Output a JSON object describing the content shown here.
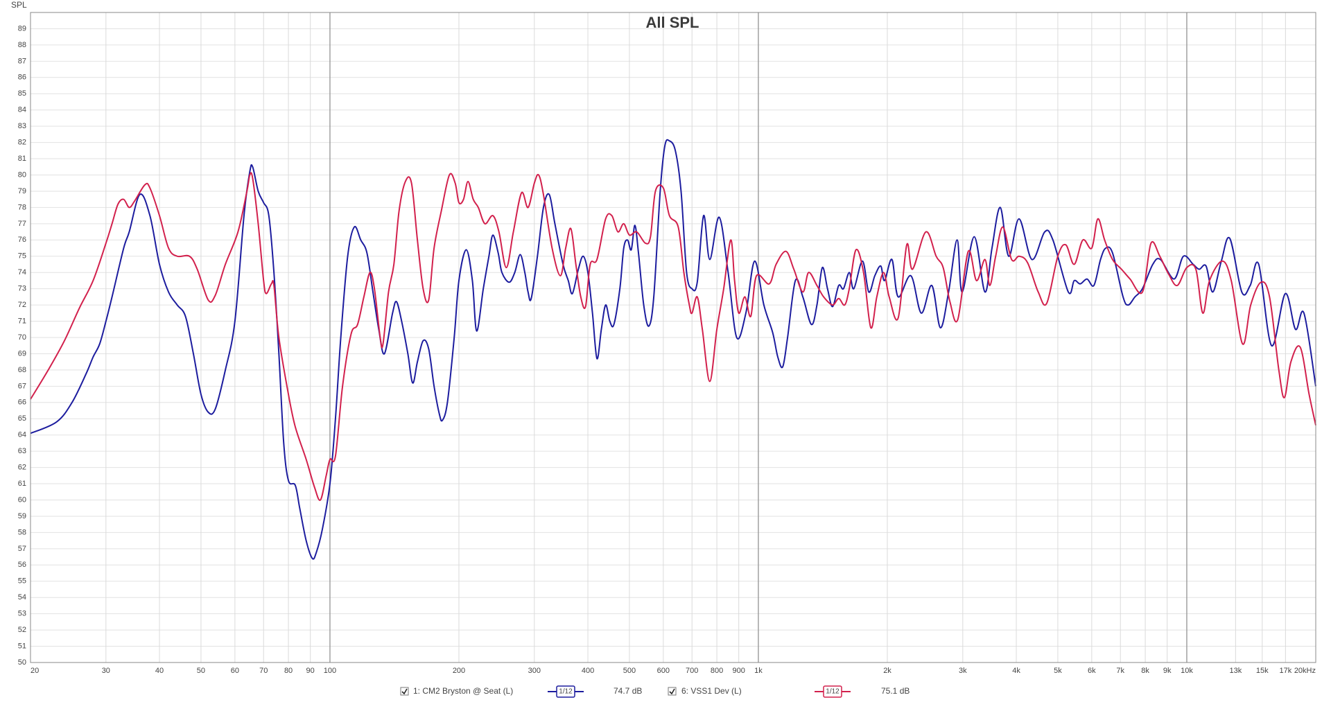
{
  "chart_data": {
    "type": "line",
    "title": "All SPL",
    "y_label": "SPL",
    "xscale": "log",
    "xlim": [
      20,
      20000
    ],
    "ylim": [
      50,
      90
    ],
    "grid": true,
    "xticks": [
      20,
      30,
      40,
      50,
      60,
      70,
      80,
      90,
      100,
      200,
      300,
      400,
      500,
      600,
      700,
      800,
      900,
      {
        "value": 1000,
        "label": "1k"
      },
      {
        "value": 2000,
        "label": "2k"
      },
      {
        "value": 3000,
        "label": "3k"
      },
      {
        "value": 4000,
        "label": "4k"
      },
      {
        "value": 5000,
        "label": "5k"
      },
      {
        "value": 6000,
        "label": "6k"
      },
      {
        "value": 7000,
        "label": "7k"
      },
      {
        "value": 8000,
        "label": "8k"
      },
      {
        "value": 9000,
        "label": "9k"
      },
      {
        "value": 10000,
        "label": "10k"
      },
      {
        "value": 13000,
        "label": "13k"
      },
      {
        "value": 15000,
        "label": "15k"
      },
      {
        "value": 17000,
        "label": "17k"
      },
      {
        "value": 20000,
        "label": "20kHz"
      }
    ],
    "yticks": [
      50,
      51,
      52,
      53,
      54,
      55,
      56,
      57,
      58,
      59,
      60,
      61,
      62,
      63,
      64,
      65,
      66,
      67,
      68,
      69,
      70,
      71,
      72,
      73,
      74,
      75,
      76,
      77,
      78,
      79,
      80,
      81,
      82,
      83,
      84,
      85,
      86,
      87,
      88,
      89
    ],
    "series": [
      {
        "name": "1: CM2 Bryston @ Seat (L)",
        "color": "#1c1c9e",
        "smoothing": "1/12",
        "level": "74.7 dB",
        "x": [
          20,
          23,
          25,
          27,
          28,
          29,
          30,
          31,
          33,
          34,
          36,
          38,
          40,
          42,
          44,
          46,
          48,
          50,
          52,
          54,
          57,
          60,
          63,
          65,
          66,
          68,
          70,
          72,
          74,
          76,
          78,
          80,
          83,
          85,
          88,
          91,
          93,
          96,
          100,
          103,
          106,
          110,
          114,
          118,
          122,
          126,
          130,
          134,
          140,
          143,
          147,
          152,
          156,
          160,
          165,
          170,
          175,
          180,
          183,
          188,
          195,
          200,
          208,
          215,
          220,
          228,
          235,
          240,
          247,
          252,
          262,
          270,
          278,
          285,
          290,
          295,
          305,
          315,
          325,
          335,
          350,
          360,
          368,
          380,
          390,
          400,
          410,
          420,
          430,
          440,
          450,
          460,
          475,
          485,
          495,
          505,
          515,
          525,
          540,
          555,
          570,
          590,
          605,
          620,
          640,
          660,
          680,
          700,
          720,
          745,
          770,
          810,
          850,
          890,
          935,
          980,
          1030,
          1080,
          1110,
          1140,
          1170,
          1220,
          1270,
          1330,
          1370,
          1410,
          1450,
          1490,
          1540,
          1580,
          1630,
          1670,
          1750,
          1810,
          1870,
          1930,
          1970,
          2050,
          2120,
          2270,
          2400,
          2540,
          2660,
          2780,
          2910,
          2990,
          3190,
          3380,
          3510,
          3670,
          3840,
          4060,
          4350,
          4660,
          4870,
          5290,
          5460,
          5640,
          5850,
          6070,
          6290,
          6470,
          6710,
          7100,
          7300,
          7570,
          7880,
          8330,
          8680,
          9340,
          9820,
          10350,
          10690,
          11090,
          11500,
          12040,
          12600,
          13440,
          14060,
          14720,
          15770,
          16980,
          17940,
          18770,
          20000
        ],
        "values": [
          64.1,
          64.8,
          66,
          67.8,
          68.8,
          69.6,
          71,
          72.5,
          75.5,
          76.5,
          78.8,
          77.5,
          74.5,
          72.8,
          72,
          71.3,
          69,
          66.5,
          65.4,
          65.6,
          68,
          71,
          77.5,
          80.2,
          80.5,
          79,
          78.3,
          77.5,
          74,
          69,
          63.5,
          61.2,
          60.9,
          59.5,
          57.5,
          56.4,
          56.8,
          58.2,
          61,
          65,
          70,
          75,
          76.8,
          76,
          75.2,
          72.8,
          70.5,
          69,
          71.5,
          72.2,
          71,
          69,
          67.2,
          68.5,
          69.8,
          69.3,
          67,
          65.3,
          64.9,
          66,
          70,
          73.5,
          75.4,
          73.5,
          70.4,
          73,
          75,
          76.3,
          75.2,
          74,
          73.4,
          74,
          75.1,
          74,
          72.8,
          72.4,
          75,
          78,
          78.8,
          77,
          74.5,
          73.5,
          72.7,
          74.2,
          75,
          74,
          71.5,
          68.7,
          70.5,
          72,
          71,
          70.8,
          73,
          75.5,
          76,
          75.4,
          76.9,
          75.2,
          72,
          70.7,
          72.5,
          79,
          81.8,
          82.1,
          81.5,
          79,
          74,
          73,
          73.4,
          77.5,
          74.8,
          77.4,
          74,
          70,
          71.5,
          74.7,
          72,
          70.3,
          68.8,
          68.2,
          70,
          73.5,
          72.5,
          70.8,
          72,
          74.3,
          73,
          71.9,
          73.2,
          73,
          74,
          73,
          74.7,
          72.8,
          73.8,
          74.4,
          73.5,
          74.8,
          72.5,
          73.8,
          71.5,
          73.2,
          70.6,
          72.8,
          76,
          72.8,
          76.2,
          72.8,
          75.5,
          78,
          75,
          77.3,
          74.8,
          76.5,
          76,
          72.8,
          73.5,
          73.3,
          73.6,
          73.2,
          74.8,
          75.5,
          75.2,
          72.5,
          72,
          72.5,
          73,
          74.5,
          74.8,
          73.6,
          75,
          74.5,
          74.2,
          74.4,
          72.8,
          74.7,
          76.1,
          72.8,
          73.2,
          74.5,
          69.5,
          72.7,
          70.5,
          71.5,
          67
        ]
      },
      {
        "name": "6: VSS1 Dev (L)",
        "color": "#d2204c",
        "smoothing": "1/12",
        "level": "75.1 dB",
        "x": [
          20,
          22,
          24,
          26,
          28,
          30,
          31,
          32,
          33,
          34,
          35,
          37,
          38,
          40,
          42,
          44,
          47,
          49,
          52,
          54,
          57,
          61,
          64,
          65,
          66,
          68,
          70,
          71,
          73,
          74,
          76,
          80,
          83,
          88,
          92,
          95,
          98,
          100,
          103,
          107,
          112,
          116,
          120,
          124,
          127,
          131,
          133,
          137,
          141,
          145,
          150,
          155,
          160,
          165,
          170,
          175,
          182,
          190,
          196,
          200,
          205,
          210,
          216,
          222,
          230,
          240,
          248,
          258,
          268,
          280,
          290,
          300,
          307,
          315,
          330,
          345,
          355,
          365,
          375,
          385,
          395,
          405,
          420,
          440,
          455,
          470,
          485,
          500,
          520,
          545,
          560,
          575,
          600,
          620,
          650,
          670,
          690,
          700,
          720,
          740,
          770,
          800,
          830,
          862,
          880,
          900,
          930,
          960,
          990,
          1060,
          1100,
          1160,
          1210,
          1270,
          1310,
          1370,
          1420,
          1490,
          1540,
          1590,
          1630,
          1690,
          1760,
          1830,
          1890,
          1960,
          2020,
          2120,
          2220,
          2290,
          2460,
          2600,
          2700,
          2800,
          2920,
          3090,
          3230,
          3380,
          3470,
          3580,
          3720,
          3900,
          4060,
          4250,
          4500,
          4710,
          5000,
          5220,
          5460,
          5720,
          6000,
          6200,
          6430,
          6710,
          7040,
          7370,
          7880,
          8250,
          8650,
          9070,
          9500,
          10000,
          10500,
          10900,
          11300,
          12100,
          12700,
          13500,
          14100,
          14900,
          15600,
          16400,
          16900,
          17500,
          18400,
          19300,
          20000
        ],
        "values": [
          66.2,
          68,
          69.8,
          71.8,
          73.5,
          75.8,
          77,
          78.2,
          78.5,
          78,
          78.4,
          79.4,
          79.2,
          77.5,
          75.5,
          75,
          75,
          74.2,
          72.3,
          72.6,
          74.5,
          76.5,
          79,
          80,
          79.8,
          77,
          73.5,
          72.7,
          73.3,
          73.2,
          70,
          66.5,
          64.5,
          62.5,
          60.8,
          60,
          61.5,
          62.5,
          62.7,
          67,
          70.2,
          70.8,
          72.5,
          74,
          73,
          70,
          69.6,
          72.8,
          74.5,
          77.8,
          79.6,
          79.5,
          76,
          73,
          72.3,
          75.5,
          77.8,
          80,
          79.5,
          78.3,
          78.5,
          79.6,
          78.5,
          78,
          77,
          77.5,
          76.5,
          74.3,
          76.5,
          78.9,
          78,
          79.5,
          80,
          78.8,
          75.5,
          73.8,
          75.5,
          76.7,
          74.5,
          72.5,
          71.9,
          74.5,
          74.8,
          77.3,
          77.5,
          76.5,
          77,
          76.3,
          76.5,
          75.8,
          76.2,
          79,
          79.2,
          77.5,
          76.8,
          74,
          72,
          71.5,
          72.5,
          70.5,
          67.3,
          70.5,
          73,
          76,
          73.5,
          71.5,
          72.5,
          71.3,
          73.8,
          73.3,
          74.5,
          75.3,
          74.2,
          72.8,
          74,
          73.2,
          72.5,
          72,
          72.4,
          72,
          73,
          75.4,
          74,
          70.6,
          72.5,
          74,
          72.5,
          71.2,
          75.7,
          74.2,
          76.5,
          75,
          74.3,
          72.2,
          71.1,
          75.3,
          73.5,
          74.8,
          73.2,
          75,
          76.8,
          74.8,
          75,
          74.6,
          72.8,
          72.1,
          75,
          75.7,
          74.5,
          76,
          75.5,
          77.3,
          76,
          74.8,
          74.2,
          73.6,
          72.8,
          75.8,
          75,
          73.9,
          73.2,
          74.3,
          74.2,
          71.5,
          73.5,
          74.7,
          73.5,
          69.6,
          72,
          73.4,
          72.5,
          68,
          66.3,
          68.5,
          69.4,
          66.5,
          64.6
        ]
      }
    ]
  }
}
